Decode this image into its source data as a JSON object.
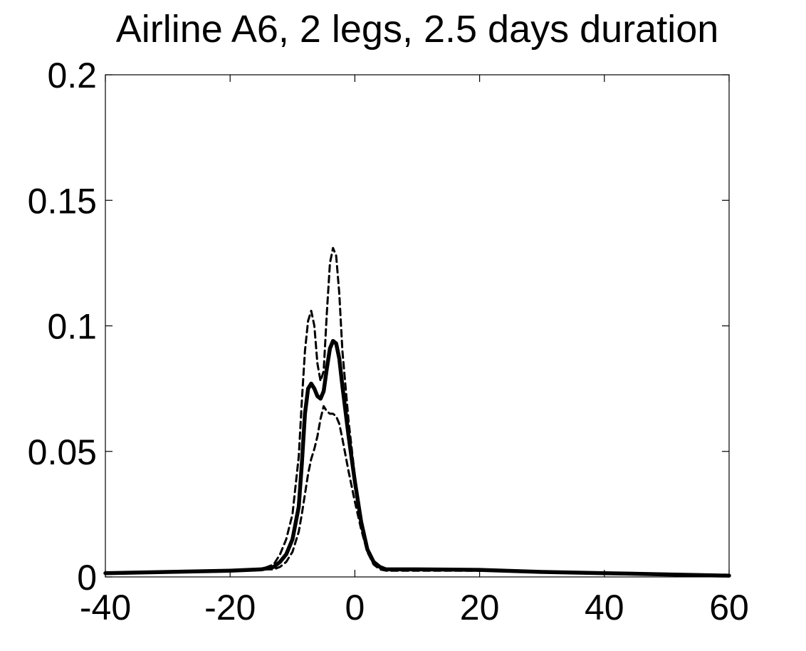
{
  "chart_data": {
    "type": "line",
    "title": "Airline A6, 2 legs, 2.5 days duration",
    "xlabel": "",
    "ylabel": "",
    "xlim": [
      -40,
      60
    ],
    "ylim": [
      0,
      0.2
    ],
    "xticks": [
      -40,
      -20,
      0,
      20,
      40,
      60
    ],
    "xtick_labels": [
      "-40",
      "-20",
      "0",
      "20",
      "40",
      "60"
    ],
    "yticks": [
      0,
      0.05,
      0.1,
      0.15,
      0.2
    ],
    "ytick_labels": [
      "0",
      "0.05",
      "0.1",
      "0.15",
      "0.2"
    ],
    "grid": false,
    "legend": "none",
    "series": [
      {
        "style": "solid",
        "color": "#000000",
        "x": [
          -40,
          -30,
          -20,
          -15,
          -13,
          -12,
          -11,
          -10,
          -9,
          -8.5,
          -8,
          -7.5,
          -7,
          -6.5,
          -6,
          -5.5,
          -5,
          -4.5,
          -4,
          -3.5,
          -3,
          -2.5,
          -2,
          -1,
          0,
          1,
          2,
          3,
          4,
          5,
          10,
          20,
          30,
          40,
          50,
          60
        ],
        "y": [
          0.0015,
          0.002,
          0.0025,
          0.003,
          0.004,
          0.006,
          0.009,
          0.015,
          0.028,
          0.045,
          0.065,
          0.075,
          0.077,
          0.075,
          0.072,
          0.071,
          0.074,
          0.083,
          0.091,
          0.094,
          0.093,
          0.087,
          0.076,
          0.056,
          0.038,
          0.022,
          0.011,
          0.006,
          0.004,
          0.003,
          0.003,
          0.0028,
          0.002,
          0.0015,
          0.001,
          0.0005
        ]
      },
      {
        "style": "dashed",
        "color": "#000000",
        "x": [
          -40,
          -30,
          -20,
          -15,
          -13,
          -12,
          -11,
          -10,
          -9,
          -8.5,
          -8,
          -7.5,
          -7,
          -6.5,
          -6,
          -5.5,
          -5,
          -4.5,
          -4,
          -3.5,
          -3,
          -2.5,
          -2,
          -1,
          0,
          1,
          2,
          3,
          4,
          5,
          10,
          20,
          30,
          40,
          50,
          60
        ],
        "y": [
          0.0015,
          0.002,
          0.0025,
          0.003,
          0.005,
          0.009,
          0.015,
          0.025,
          0.048,
          0.07,
          0.09,
          0.102,
          0.106,
          0.1,
          0.085,
          0.078,
          0.082,
          0.105,
          0.125,
          0.131,
          0.128,
          0.113,
          0.09,
          0.062,
          0.04,
          0.023,
          0.012,
          0.006,
          0.004,
          0.003,
          0.003,
          0.0028,
          0.002,
          0.0015,
          0.001,
          0.0005
        ]
      },
      {
        "style": "dashed",
        "color": "#000000",
        "x": [
          -40,
          -30,
          -20,
          -15,
          -13,
          -12,
          -11,
          -10,
          -9,
          -8.5,
          -8,
          -7.5,
          -7,
          -6.5,
          -6,
          -5.5,
          -5,
          -4.5,
          -4,
          -3.5,
          -3,
          -2.5,
          -2,
          -1,
          0,
          1,
          2,
          3,
          4,
          5,
          10,
          20,
          30,
          40,
          50,
          60
        ],
        "y": [
          0.0015,
          0.002,
          0.0025,
          0.003,
          0.003,
          0.004,
          0.006,
          0.01,
          0.018,
          0.025,
          0.033,
          0.041,
          0.047,
          0.051,
          0.056,
          0.063,
          0.068,
          0.066,
          0.065,
          0.065,
          0.064,
          0.061,
          0.055,
          0.042,
          0.03,
          0.019,
          0.01,
          0.005,
          0.003,
          0.0025,
          0.0025,
          0.0025,
          0.002,
          0.0015,
          0.001,
          0.0005
        ]
      }
    ]
  }
}
